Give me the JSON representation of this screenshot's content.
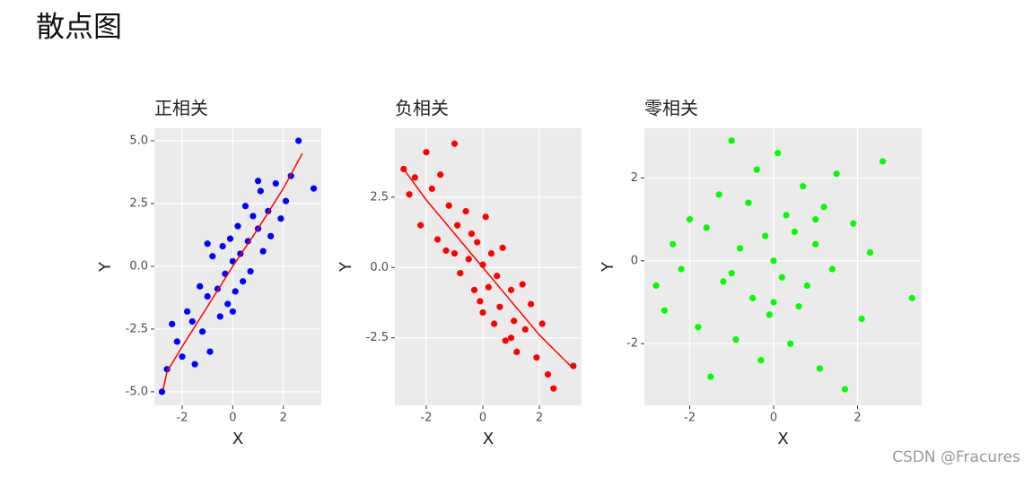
{
  "title": "散点图",
  "watermark": "CSDN @Fracures",
  "chart_data": [
    {
      "type": "scatter",
      "title": "正相关",
      "x_label": "X",
      "y_label": "Y",
      "color": "#0000ff",
      "grid": true,
      "xlim": [
        -3.1,
        3.5
      ],
      "ylim": [
        -5.54,
        5.5
      ],
      "xticks": [
        -2,
        0,
        2
      ],
      "yticks": [
        {
          "value": 5,
          "label": "5.0"
        },
        2.5,
        {
          "value": 0,
          "label": "0.0"
        },
        -2.5,
        {
          "value": -5,
          "label": "-5.0"
        }
      ],
      "x": [
        -2.8,
        -2.6,
        -2.4,
        -2.2,
        -2.0,
        -1.8,
        -1.6,
        -1.5,
        -1.3,
        -1.2,
        -1.0,
        -0.9,
        -0.8,
        -0.6,
        -0.5,
        -0.4,
        -0.3,
        -0.2,
        -0.1,
        0,
        0.1,
        0.2,
        0.3,
        0.4,
        0.5,
        0.6,
        0.7,
        0.8,
        1.0,
        1.1,
        1.2,
        1.4,
        1.5,
        1.7,
        1.9,
        2.1,
        2.3,
        2.6,
        3.2,
        -1.0,
        0.0,
        1.0
      ],
      "y": [
        -5.0,
        -4.1,
        -2.3,
        -3.0,
        -3.6,
        -1.8,
        -2.2,
        -3.9,
        -0.8,
        -2.6,
        -1.2,
        -3.4,
        0.4,
        -0.9,
        -2.0,
        0.8,
        -0.3,
        -1.5,
        1.1,
        0.2,
        -1.0,
        1.6,
        0.5,
        -0.6,
        2.4,
        1.0,
        -0.2,
        2.0,
        1.5,
        3.0,
        0.6,
        2.2,
        1.2,
        3.3,
        1.9,
        2.6,
        3.6,
        5.0,
        3.1,
        0.9,
        -1.8,
        3.4
      ],
      "trend": {
        "color": "#ff0000",
        "x": [
          -2.75,
          -2.6,
          -2,
          -1,
          0,
          1,
          2,
          2.75
        ],
        "y": [
          -4.9,
          -4.2,
          -3.2,
          -1.6,
          0,
          1.5,
          3.1,
          4.5
        ]
      }
    },
    {
      "type": "scatter",
      "title": "负相关",
      "x_label": "X",
      "y_label": "Y",
      "color": "#ff0000",
      "grid": true,
      "xlim": [
        -3.11,
        3.49
      ],
      "ylim": [
        -4.9,
        4.95
      ],
      "xticks": [
        -2,
        0,
        2
      ],
      "yticks": [
        2.5,
        {
          "value": 0,
          "label": "0.0"
        },
        -2.5
      ],
      "x": [
        -2.8,
        -2.6,
        -2.4,
        -2.2,
        -2.0,
        -1.8,
        -1.6,
        -1.5,
        -1.3,
        -1.2,
        -1.0,
        -0.9,
        -0.8,
        -0.6,
        -0.5,
        -0.4,
        -0.3,
        -0.2,
        -0.1,
        0,
        0.1,
        0.2,
        0.3,
        0.4,
        0.5,
        0.6,
        0.7,
        0.8,
        1.0,
        1.1,
        1.2,
        1.4,
        1.5,
        1.7,
        1.9,
        2.1,
        2.3,
        2.5,
        3.2,
        -1.0,
        0.0,
        1.0
      ],
      "y": [
        3.5,
        2.6,
        3.2,
        1.5,
        4.1,
        2.8,
        1.0,
        3.3,
        0.6,
        2.2,
        4.4,
        1.5,
        -0.2,
        2.0,
        0.3,
        1.2,
        -0.8,
        0.9,
        -1.2,
        0.1,
        1.8,
        -0.7,
        0.5,
        -2.0,
        -0.3,
        -1.4,
        0.7,
        -2.6,
        -0.8,
        -1.9,
        -3.0,
        -0.6,
        -2.2,
        -1.3,
        -3.2,
        -2.0,
        -3.8,
        -4.3,
        -3.5,
        0.5,
        -1.6,
        -2.5
      ],
      "trend": {
        "color": "#ff0000",
        "x": [
          -2.8,
          -2,
          -1,
          0,
          1,
          2,
          3.2
        ],
        "y": [
          3.5,
          2.4,
          1.2,
          0,
          -1.2,
          -2.4,
          -3.6
        ]
      }
    },
    {
      "type": "scatter",
      "title": "零相关",
      "x_label": "X",
      "y_label": "Y",
      "color": "#00ff00",
      "grid": true,
      "xlim": [
        -3.08,
        3.53
      ],
      "ylim": [
        -3.49,
        3.2
      ],
      "xticks": [
        -2,
        0,
        2
      ],
      "yticks": [
        2,
        0,
        -2
      ],
      "x": [
        -2.8,
        -2.6,
        -2.4,
        -2.2,
        -2.0,
        -1.8,
        -1.6,
        -1.5,
        -1.3,
        -1.2,
        -1.0,
        -0.9,
        -0.8,
        -0.6,
        -0.5,
        -0.4,
        -0.3,
        -0.2,
        -0.1,
        0,
        0.1,
        0.2,
        0.3,
        0.4,
        0.5,
        0.6,
        0.7,
        0.8,
        1.0,
        1.1,
        1.2,
        1.4,
        1.5,
        1.7,
        1.9,
        2.1,
        2.3,
        2.6,
        3.3,
        -1.0,
        0.0,
        1.0
      ],
      "y": [
        -0.6,
        -1.2,
        0.4,
        -0.2,
        1.0,
        -1.6,
        0.8,
        -2.8,
        1.6,
        -0.5,
        2.9,
        -1.9,
        0.3,
        1.4,
        -0.9,
        2.2,
        -2.4,
        0.6,
        -1.3,
        0.0,
        2.6,
        -0.4,
        1.1,
        -2.0,
        0.7,
        -1.1,
        1.8,
        -0.6,
        0.4,
        -2.6,
        1.3,
        -0.2,
        2.1,
        -3.1,
        0.9,
        -1.4,
        0.2,
        2.4,
        -0.9,
        -0.3,
        -1.0,
        1.0
      ]
    }
  ]
}
